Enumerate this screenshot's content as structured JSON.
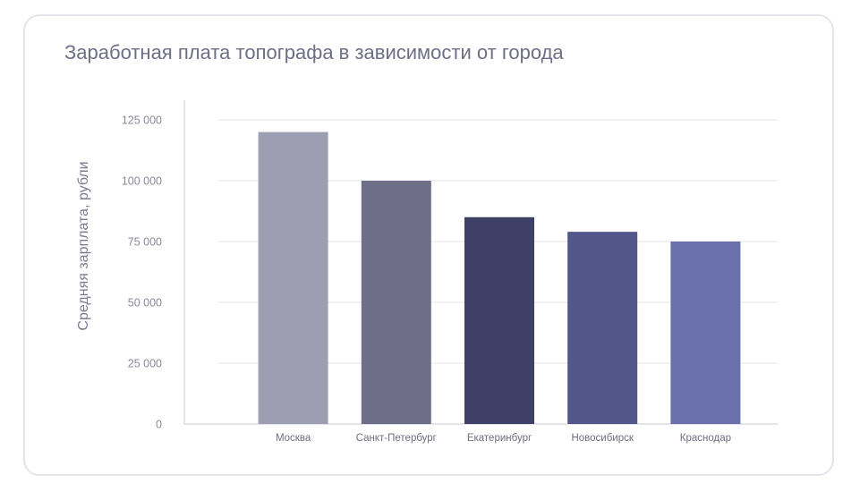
{
  "chart_data": {
    "type": "bar",
    "title": "Заработная плата топографа в зависимости от города",
    "xlabel": "",
    "ylabel": "Средняя зарплата, рубли",
    "categories": [
      "Москва",
      "Санкт-Петербург",
      "Екатеринбург",
      "Новосибирск",
      "Краснодар"
    ],
    "values": [
      120000,
      100000,
      85000,
      79000,
      75000
    ],
    "colors": [
      "#9e9eb2",
      "#6e6e88",
      "#3f4065",
      "#525789",
      "#6970ab"
    ],
    "yticks": [
      0,
      25000,
      50000,
      75000,
      100000,
      125000
    ],
    "ytick_labels": [
      "0",
      "25 000",
      "50 000",
      "75 000",
      "100 000",
      "125 000"
    ],
    "ylim": [
      0,
      125000
    ],
    "grid": true,
    "legend": "none"
  },
  "colors": {
    "gridline": "#e6e6ee",
    "axis": "#c8c8d4",
    "card_border": "#e4e4ec"
  }
}
